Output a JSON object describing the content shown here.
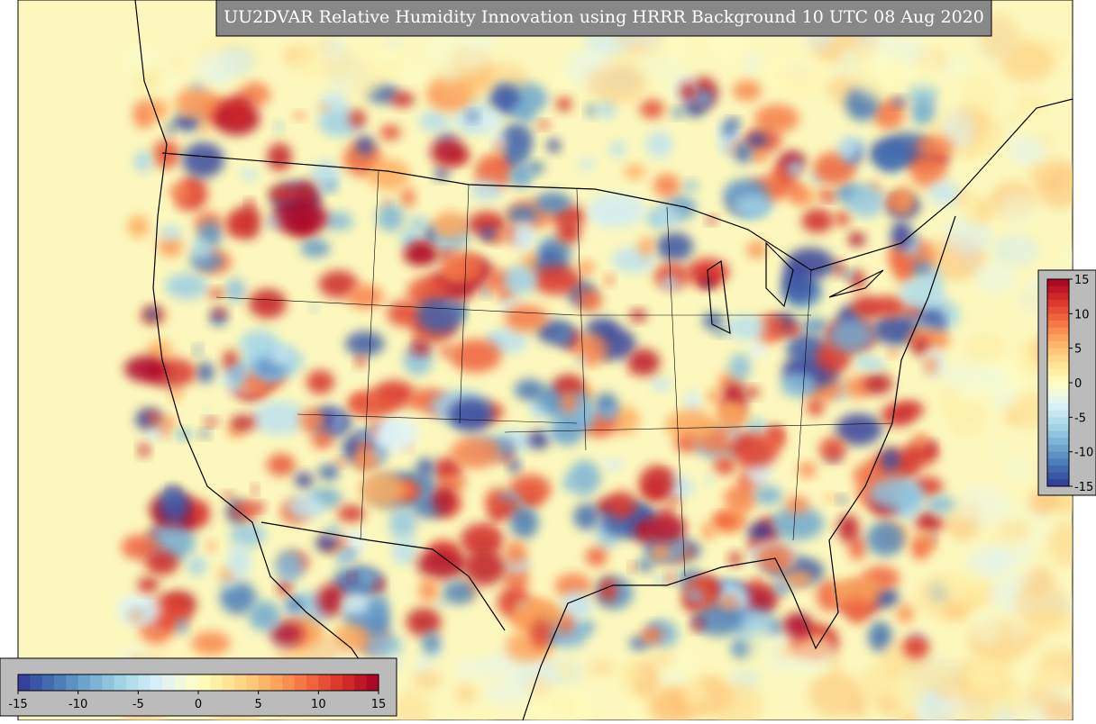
{
  "title": "UU2DVAR Relative Humidity Innovation using HRRR Background 10 UTC 08 Aug 2020",
  "colormap": [
    "#313695",
    "#4575b4",
    "#74add1",
    "#abd9e9",
    "#e0f3f8",
    "#ffffbf",
    "#fee090",
    "#fdae61",
    "#f46d43",
    "#d73027",
    "#a50026"
  ],
  "colorbars": [
    {
      "orientation": "horizontal",
      "lim": [
        -15,
        15
      ],
      "ticks": [
        -15,
        -10,
        -5,
        0,
        5,
        10,
        15
      ]
    },
    {
      "orientation": "vertical",
      "lim": [
        -15,
        15
      ],
      "ticks": [
        15,
        10,
        5,
        0,
        -5,
        -10,
        -15
      ]
    }
  ]
}
